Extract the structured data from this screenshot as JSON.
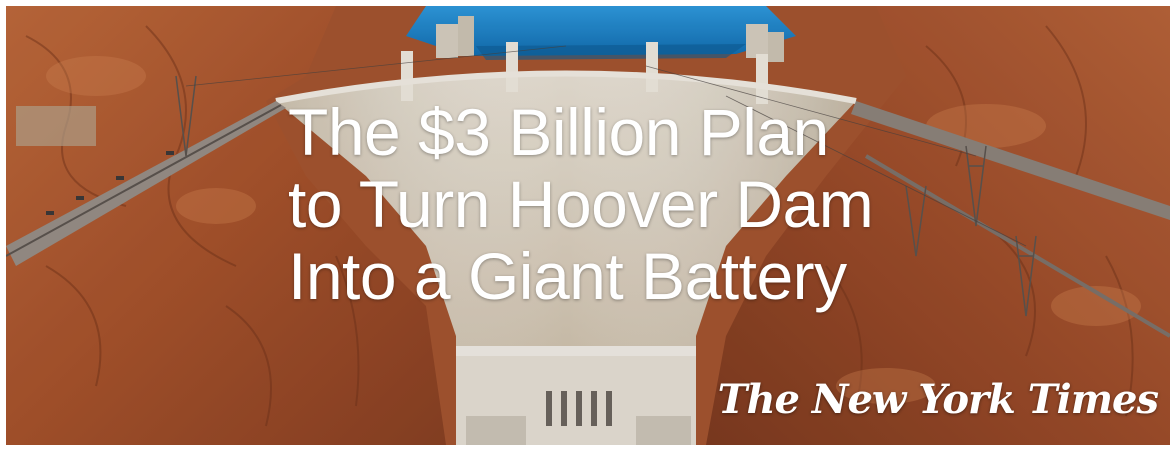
{
  "headline": {
    "line1": "The $3 Billion Plan",
    "line2": "to Turn Hoover Dam",
    "line3": "Into a Giant Battery"
  },
  "masthead": {
    "text": "The New York Times"
  },
  "colors": {
    "text": "#ffffff",
    "rock": "#a9572f",
    "water": "#1f8fd6",
    "concrete": "#e2d9cb"
  },
  "icons": [
    "nyt-logo"
  ]
}
